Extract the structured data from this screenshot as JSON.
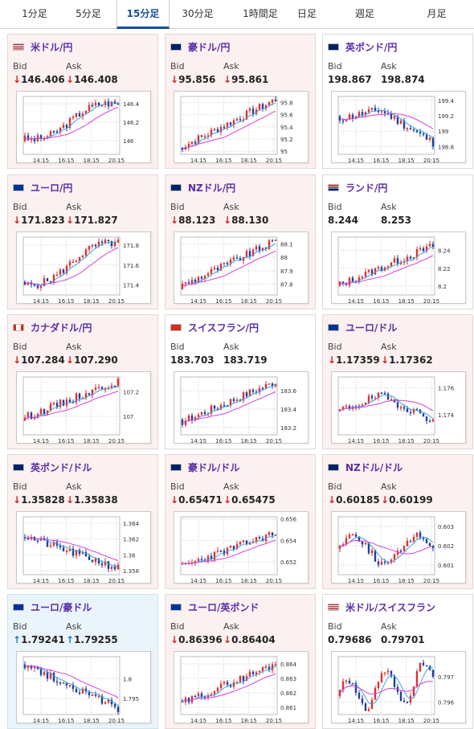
{
  "tabs": [
    {
      "label": "1分足",
      "active": false
    },
    {
      "label": "5分足",
      "active": false
    },
    {
      "label": "15分足",
      "active": true
    },
    {
      "label": "30分足",
      "active": false
    },
    {
      "label": "1時間足",
      "active": false
    },
    {
      "label": "日足",
      "active": false
    },
    {
      "label": "週足",
      "active": false
    },
    {
      "label": "月足",
      "active": false
    }
  ],
  "labels": {
    "bid": "Bid",
    "ask": "Ask"
  },
  "colors": {
    "up_candle": "#e03030",
    "down_candle": "#1d3f9e",
    "ma_short": "#3da5e0",
    "ma_long": "#d640d6",
    "down_arrow": "#d02424",
    "up_arrow": "#1f78c8"
  },
  "cards": [
    {
      "pair": "米ドル/円",
      "flag": "us",
      "bid": "146.406",
      "ask": "146.408",
      "bid_dir": "down",
      "ask_dir": "down",
      "chart_data": {
        "type": "line",
        "xlabels": [
          "14:15",
          "16:15",
          "18:15",
          "20:15"
        ],
        "yticks": [
          "146.4",
          "146.2",
          "146"
        ],
        "ylim": [
          145.85,
          146.48
        ],
        "start": 146.02,
        "end": 146.4,
        "trend": "upward with dip",
        "seed": 3
      }
    },
    {
      "pair": "豪ドル/円",
      "flag": "au",
      "bid": "95.856",
      "ask": "95.861",
      "bid_dir": "down",
      "ask_dir": "down",
      "chart_data": {
        "type": "line",
        "xlabels": [
          "14:15",
          "16:15",
          "18:15",
          "20:15"
        ],
        "yticks": [
          "95.8",
          "95.6",
          "95.4",
          "95.2",
          "95"
        ],
        "ylim": [
          94.95,
          95.9
        ],
        "start": 95.05,
        "end": 95.85,
        "trend": "upward",
        "seed": 7
      }
    },
    {
      "pair": "英ポンド/円",
      "flag": "gb",
      "bid": "198.867",
      "ask": "198.874",
      "bid_dir": "none",
      "ask_dir": "none",
      "chart_data": {
        "type": "line",
        "xlabels": [
          "14:15",
          "16:15",
          "18:15",
          "20:15"
        ],
        "yticks": [
          "199.4",
          "199.2",
          "199",
          "198.8"
        ],
        "ylim": [
          198.7,
          199.45
        ],
        "start": 199.15,
        "end": 198.85,
        "trend": "peak then decline",
        "seed": 11
      }
    },
    {
      "pair": "ユーロ/円",
      "flag": "eu",
      "bid": "171.823",
      "ask": "171.827",
      "bid_dir": "down",
      "ask_dir": "down",
      "chart_data": {
        "type": "line",
        "xlabels": [
          "14:15",
          "16:15",
          "18:15",
          "20:15"
        ],
        "yticks": [
          "171.8",
          "171.6",
          "171.4"
        ],
        "ylim": [
          171.3,
          171.88
        ],
        "start": 171.4,
        "end": 171.82,
        "trend": "upward with dip",
        "seed": 5
      }
    },
    {
      "pair": "NZドル/円",
      "flag": "nz",
      "bid": "88.123",
      "ask": "88.130",
      "bid_dir": "down",
      "ask_dir": "down",
      "chart_data": {
        "type": "line",
        "xlabels": [
          "14:15",
          "16:15",
          "18:15",
          "20:15"
        ],
        "yticks": [
          "88.1",
          "88",
          "87.9",
          "87.8"
        ],
        "ylim": [
          87.72,
          88.15
        ],
        "start": 87.78,
        "end": 88.12,
        "trend": "upward",
        "seed": 9
      }
    },
    {
      "pair": "ランド/円",
      "flag": "za",
      "bid": "8.244",
      "ask": "8.253",
      "bid_dir": "none",
      "ask_dir": "none",
      "chart_data": {
        "type": "line",
        "xlabels": [
          "14:15",
          "16:15",
          "18:15",
          "20:15"
        ],
        "yticks": [
          "8.24",
          "8.22",
          "8.2"
        ],
        "ylim": [
          8.19,
          8.255
        ],
        "start": 8.2,
        "end": 8.245,
        "trend": "upward",
        "seed": 13
      }
    },
    {
      "pair": "カナダドル/円",
      "flag": "ca",
      "bid": "107.284",
      "ask": "107.290",
      "bid_dir": "down",
      "ask_dir": "down",
      "chart_data": {
        "type": "line",
        "xlabels": [
          "14:15",
          "16:15",
          "18:15",
          "20:15"
        ],
        "yticks": [
          "107.2",
          "107"
        ],
        "ylim": [
          106.85,
          107.32
        ],
        "start": 106.98,
        "end": 107.29,
        "trend": "upward",
        "seed": 15
      }
    },
    {
      "pair": "スイスフラン/円",
      "flag": "ch",
      "bid": "183.703",
      "ask": "183.719",
      "bid_dir": "none",
      "ask_dir": "none",
      "chart_data": {
        "type": "line",
        "xlabels": [
          "14:15",
          "16:15",
          "18:15",
          "20:15"
        ],
        "yticks": [
          "183.6",
          "183.4",
          "183.2"
        ],
        "ylim": [
          183.12,
          183.75
        ],
        "start": 183.25,
        "end": 183.7,
        "trend": "upward",
        "seed": 17
      }
    },
    {
      "pair": "ユーロ/ドル",
      "flag": "eu",
      "bid": "1.17359",
      "ask": "1.17362",
      "bid_dir": "down",
      "ask_dir": "down",
      "chart_data": {
        "type": "line",
        "xlabels": [
          "14:15",
          "16:15",
          "18:15",
          "20:15"
        ],
        "yticks": [
          "1.176",
          "1.174"
        ],
        "ylim": [
          1.1725,
          1.1768
        ],
        "start": 1.1742,
        "end": 1.1736,
        "trend": "peak then decline",
        "seed": 19
      }
    },
    {
      "pair": "英ポンド/ドル",
      "flag": "gb",
      "bid": "1.35828",
      "ask": "1.35838",
      "bid_dir": "down",
      "ask_dir": "down",
      "chart_data": {
        "type": "line",
        "xlabels": [
          "14:15",
          "16:15",
          "18:15",
          "20:15"
        ],
        "yticks": [
          "1.364",
          "1.362",
          "1.36",
          "1.358"
        ],
        "ylim": [
          1.3575,
          1.3648
        ],
        "start": 1.3625,
        "end": 1.3583,
        "trend": "decline",
        "seed": 21
      }
    },
    {
      "pair": "豪ドル/ドル",
      "flag": "au",
      "bid": "0.65471",
      "ask": "0.65475",
      "bid_dir": "down",
      "ask_dir": "down",
      "chart_data": {
        "type": "line",
        "xlabels": [
          "14:15",
          "16:15",
          "18:15",
          "20:15"
        ],
        "yticks": [
          "0.656",
          "0.654",
          "0.652"
        ],
        "ylim": [
          0.6508,
          0.6562
        ],
        "start": 0.6515,
        "end": 0.6547,
        "trend": "upward",
        "seed": 23
      }
    },
    {
      "pair": "NZドル/ドル",
      "flag": "nz",
      "bid": "0.60185",
      "ask": "0.60199",
      "bid_dir": "down",
      "ask_dir": "down",
      "chart_data": {
        "type": "line",
        "xlabels": [
          "14:15",
          "16:15",
          "18:15",
          "20:15"
        ],
        "yticks": [
          "0.603",
          "0.602",
          "0.601"
        ],
        "ylim": [
          0.6005,
          0.6035
        ],
        "start": 0.6018,
        "end": 0.6019,
        "trend": "flat",
        "seed": 25
      }
    },
    {
      "pair": "ユーロ/豪ドル",
      "flag": "eu",
      "bid": "1.79241",
      "ask": "1.79255",
      "bid_dir": "up",
      "ask_dir": "up",
      "chart_data": {
        "type": "line",
        "xlabels": [
          "14:15",
          "16:15",
          "18:15",
          "20:15"
        ],
        "yticks": [
          "1.8",
          "1.795"
        ],
        "ylim": [
          1.791,
          1.8055
        ],
        "start": 1.804,
        "end": 1.7925,
        "trend": "decline",
        "seed": 27
      }
    },
    {
      "pair": "ユーロ/英ポンド",
      "flag": "eu",
      "bid": "0.86396",
      "ask": "0.86404",
      "bid_dir": "down",
      "ask_dir": "down",
      "chart_data": {
        "type": "line",
        "xlabels": [
          "14:15",
          "16:15",
          "18:15",
          "20:15"
        ],
        "yticks": [
          "0.864",
          "0.863",
          "0.862",
          "0.861"
        ],
        "ylim": [
          0.8605,
          0.8645
        ],
        "start": 0.8612,
        "end": 0.864,
        "trend": "upward",
        "seed": 29
      }
    },
    {
      "pair": "米ドル/スイスフラン",
      "flag": "us",
      "bid": "0.79686",
      "ask": "0.79701",
      "bid_dir": "none",
      "ask_dir": "none",
      "chart_data": {
        "type": "line",
        "xlabels": [
          "14:15",
          "16:15",
          "18:15",
          "20:15"
        ],
        "yticks": [
          "0.797",
          "0.796"
        ],
        "ylim": [
          0.7955,
          0.7978
        ],
        "start": 0.7962,
        "end": 0.7969,
        "trend": "volatile",
        "seed": 31
      }
    }
  ]
}
